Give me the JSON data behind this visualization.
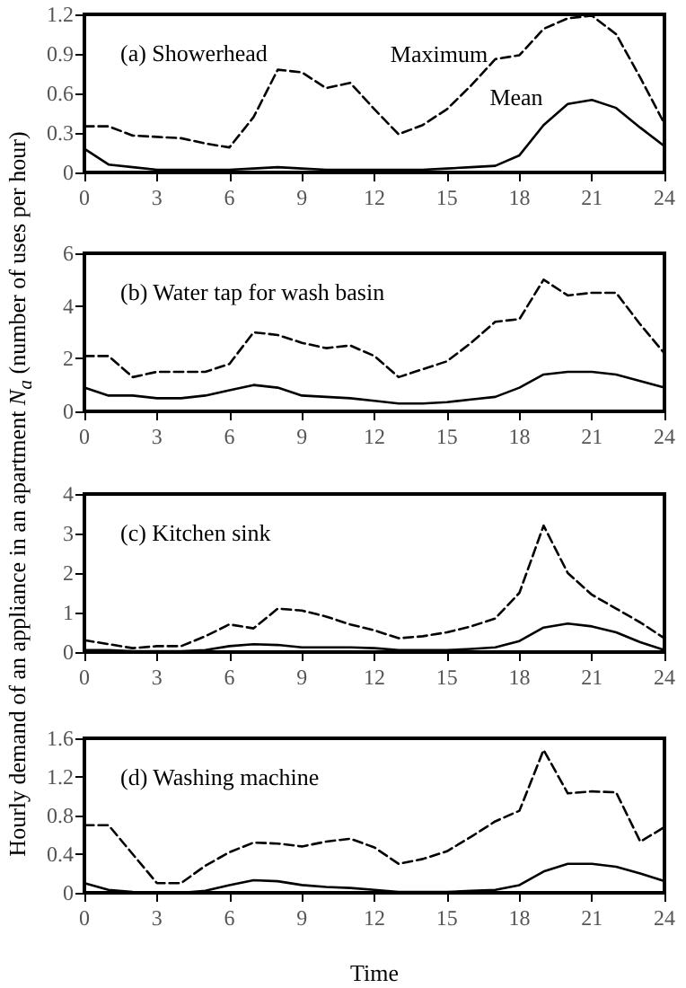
{
  "chart_data": [
    {
      "type": "line",
      "title": "(a) Showerhead",
      "ylabel": "Hourly demand of an appliance in an apartment N$_{a}$ (number of uses per hour)",
      "x": [
        0,
        1,
        2,
        3,
        4,
        5,
        6,
        7,
        8,
        9,
        10,
        11,
        12,
        13,
        14,
        15,
        16,
        17,
        18,
        19,
        20,
        21,
        22,
        23,
        24
      ],
      "xlim": [
        0,
        24
      ],
      "xticks": [
        0,
        3,
        6,
        9,
        12,
        15,
        18,
        21,
        24
      ],
      "ylim": [
        0,
        1.2
      ],
      "yticks": [
        0,
        0.3,
        0.6,
        0.9,
        1.2
      ],
      "grid": false,
      "marker": "none",
      "series": [
        {
          "name": "Maximum",
          "color": "#000000",
          "line_style": "dashed",
          "values": [
            0.35,
            0.35,
            0.28,
            0.27,
            0.26,
            0.22,
            0.19,
            0.42,
            0.78,
            0.76,
            0.64,
            0.68,
            0.48,
            0.29,
            0.36,
            0.48,
            0.66,
            0.86,
            0.89,
            1.09,
            1.17,
            1.19,
            1.05,
            0.72,
            0.37
          ]
        },
        {
          "name": "Mean",
          "color": "#000000",
          "line_style": "solid",
          "values": [
            0.18,
            0.06,
            0.04,
            0.02,
            0.02,
            0.02,
            0.02,
            0.03,
            0.04,
            0.03,
            0.02,
            0.02,
            0.02,
            0.02,
            0.02,
            0.03,
            0.04,
            0.05,
            0.13,
            0.36,
            0.52,
            0.55,
            0.49,
            0.34,
            0.2
          ]
        }
      ]
    },
    {
      "type": "line",
      "title": "(b) Water tap for wash basin",
      "x": [
        0,
        1,
        2,
        3,
        4,
        5,
        6,
        7,
        8,
        9,
        10,
        11,
        12,
        13,
        14,
        15,
        16,
        17,
        18,
        19,
        20,
        21,
        22,
        23,
        24
      ],
      "xlim": [
        0,
        24
      ],
      "xticks": [
        0,
        3,
        6,
        9,
        12,
        15,
        18,
        21,
        24
      ],
      "ylim": [
        0,
        6
      ],
      "yticks": [
        0,
        2,
        4,
        6
      ],
      "grid": false,
      "marker": "none",
      "series": [
        {
          "color": "#000000",
          "line_style": "dashed",
          "values": [
            2.1,
            2.1,
            1.3,
            1.5,
            1.5,
            1.5,
            1.8,
            3.0,
            2.9,
            2.6,
            2.4,
            2.5,
            2.1,
            1.3,
            1.6,
            1.9,
            2.6,
            3.4,
            3.5,
            5.0,
            4.4,
            4.5,
            4.5,
            3.3,
            2.2
          ]
        },
        {
          "color": "#000000",
          "line_style": "solid",
          "values": [
            0.9,
            0.6,
            0.6,
            0.5,
            0.5,
            0.6,
            0.8,
            1.0,
            0.9,
            0.6,
            0.55,
            0.5,
            0.4,
            0.3,
            0.3,
            0.35,
            0.45,
            0.55,
            0.9,
            1.4,
            1.5,
            1.5,
            1.4,
            1.15,
            0.9
          ]
        }
      ]
    },
    {
      "type": "line",
      "title": "(c) Kitchen sink",
      "x": [
        0,
        1,
        2,
        3,
        4,
        5,
        6,
        7,
        8,
        9,
        10,
        11,
        12,
        13,
        14,
        15,
        16,
        17,
        18,
        19,
        20,
        21,
        22,
        23,
        24
      ],
      "xlim": [
        0,
        24
      ],
      "xticks": [
        0,
        3,
        6,
        9,
        12,
        15,
        18,
        21,
        24
      ],
      "ylim": [
        0,
        4
      ],
      "yticks": [
        0,
        1,
        2,
        3,
        4
      ],
      "grid": false,
      "marker": "none",
      "series": [
        {
          "color": "#000000",
          "line_style": "dashed",
          "values": [
            0.3,
            0.2,
            0.1,
            0.15,
            0.15,
            0.4,
            0.7,
            0.6,
            1.1,
            1.05,
            0.9,
            0.7,
            0.55,
            0.35,
            0.4,
            0.5,
            0.65,
            0.85,
            1.5,
            3.2,
            2.0,
            1.45,
            1.1,
            0.75,
            0.35
          ]
        },
        {
          "color": "#000000",
          "line_style": "solid",
          "values": [
            0.05,
            0.05,
            0.02,
            0.02,
            0.02,
            0.05,
            0.15,
            0.2,
            0.18,
            0.12,
            0.12,
            0.12,
            0.1,
            0.05,
            0.05,
            0.05,
            0.08,
            0.12,
            0.28,
            0.62,
            0.72,
            0.65,
            0.5,
            0.25,
            0.05
          ]
        }
      ]
    },
    {
      "type": "line",
      "title": "(d) Washing machine",
      "xlabel": "Time",
      "x": [
        0,
        1,
        2,
        3,
        4,
        5,
        6,
        7,
        8,
        9,
        10,
        11,
        12,
        13,
        14,
        15,
        16,
        17,
        18,
        19,
        20,
        21,
        22,
        23,
        24
      ],
      "xlim": [
        0,
        24
      ],
      "xticks": [
        0,
        3,
        6,
        9,
        12,
        15,
        18,
        21,
        24
      ],
      "ylim": [
        0,
        1.6
      ],
      "yticks": [
        0,
        0.4,
        0.8,
        1.2,
        1.6
      ],
      "grid": false,
      "marker": "none",
      "series": [
        {
          "color": "#000000",
          "line_style": "dashed",
          "values": [
            0.7,
            0.7,
            0.4,
            0.1,
            0.1,
            0.28,
            0.42,
            0.52,
            0.51,
            0.48,
            0.53,
            0.56,
            0.47,
            0.3,
            0.35,
            0.43,
            0.58,
            0.74,
            0.85,
            1.48,
            1.03,
            1.05,
            1.04,
            0.53,
            0.68
          ]
        },
        {
          "color": "#000000",
          "line_style": "solid",
          "values": [
            0.1,
            0.03,
            0.01,
            0,
            0,
            0.02,
            0.08,
            0.13,
            0.12,
            0.08,
            0.06,
            0.05,
            0.03,
            0.01,
            0.01,
            0.01,
            0.02,
            0.03,
            0.08,
            0.22,
            0.3,
            0.3,
            0.27,
            0.2,
            0.12
          ]
        }
      ]
    }
  ]
}
